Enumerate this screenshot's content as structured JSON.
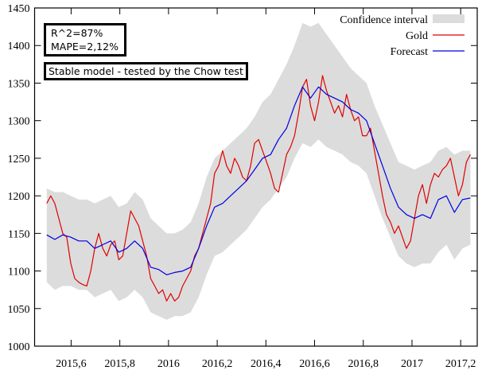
{
  "chart_data": {
    "type": "line",
    "title": "",
    "xlabel": "",
    "ylabel": "",
    "xlim": [
      2015.45,
      2017.268
    ],
    "ylim": [
      1000,
      1450
    ],
    "xticks": [
      2015.6,
      2015.8,
      2016.0,
      2016.2,
      2016.4,
      2016.6,
      2016.8,
      2017.0,
      2017.2
    ],
    "xtick_labels": [
      "2015,6",
      "2015,8",
      "2016",
      "2016,2",
      "2016,4",
      "2016,6",
      "2016,8",
      "2017",
      "2017,2"
    ],
    "yticks": [
      1000,
      1050,
      1100,
      1150,
      1200,
      1250,
      1300,
      1350,
      1400,
      1450
    ],
    "ytick_labels": [
      "1000",
      "1050",
      "1100",
      "1150",
      "1200",
      "1250",
      "1300",
      "1350",
      "1400",
      "1450"
    ],
    "grid": false,
    "legend_position": "top-right",
    "legend": [
      "Confidence interval",
      "Gold",
      "Forecast"
    ],
    "colors": {
      "ci": "#dcdcdc",
      "gold": "#e00000",
      "forecast": "#0000e0"
    },
    "series": [
      {
        "name": "Gold",
        "x_start": 2015.5,
        "x_end": 2017.24,
        "values": [
          1190,
          1200,
          1190,
          1170,
          1150,
          1145,
          1110,
          1090,
          1085,
          1082,
          1080,
          1100,
          1130,
          1150,
          1130,
          1120,
          1135,
          1140,
          1115,
          1120,
          1150,
          1180,
          1170,
          1160,
          1140,
          1120,
          1090,
          1080,
          1070,
          1075,
          1060,
          1070,
          1060,
          1065,
          1080,
          1090,
          1100,
          1120,
          1130,
          1150,
          1170,
          1190,
          1230,
          1240,
          1260,
          1240,
          1230,
          1250,
          1240,
          1225,
          1220,
          1240,
          1270,
          1275,
          1260,
          1245,
          1230,
          1210,
          1205,
          1230,
          1255,
          1265,
          1280,
          1310,
          1345,
          1355,
          1320,
          1300,
          1325,
          1360,
          1340,
          1325,
          1310,
          1320,
          1305,
          1335,
          1315,
          1300,
          1305,
          1280,
          1280,
          1290,
          1260,
          1230,
          1200,
          1175,
          1165,
          1150,
          1160,
          1145,
          1130,
          1140,
          1170,
          1200,
          1215,
          1190,
          1215,
          1230,
          1225,
          1235,
          1240,
          1250,
          1225,
          1200,
          1215,
          1245,
          1255
        ]
      },
      {
        "name": "Forecast",
        "x_start": 2015.5,
        "x_end": 2017.24,
        "values": [
          1148,
          1142,
          1148,
          1145,
          1140,
          1140,
          1130,
          1135,
          1140,
          1125,
          1130,
          1140,
          1130,
          1105,
          1102,
          1095,
          1098,
          1100,
          1105,
          1130,
          1160,
          1185,
          1190,
          1200,
          1210,
          1220,
          1235,
          1250,
          1255,
          1275,
          1290,
          1320,
          1345,
          1330,
          1345,
          1335,
          1330,
          1325,
          1315,
          1310,
          1300,
          1270,
          1240,
          1210,
          1185,
          1175,
          1170,
          1175,
          1170,
          1195,
          1200,
          1178,
          1195,
          1197
        ]
      },
      {
        "name": "Confidence interval",
        "x_start": 2015.5,
        "x_end": 2017.24,
        "upper": [
          1210,
          1205,
          1205,
          1200,
          1195,
          1195,
          1190,
          1195,
          1200,
          1185,
          1190,
          1205,
          1195,
          1170,
          1160,
          1150,
          1150,
          1155,
          1165,
          1190,
          1225,
          1250,
          1260,
          1270,
          1280,
          1290,
          1305,
          1325,
          1335,
          1355,
          1375,
          1400,
          1430,
          1425,
          1430,
          1415,
          1400,
          1385,
          1370,
          1360,
          1350,
          1320,
          1295,
          1270,
          1245,
          1240,
          1235,
          1240,
          1245,
          1260,
          1265,
          1255,
          1260,
          1260
        ],
        "lower": [
          1085,
          1075,
          1080,
          1080,
          1075,
          1075,
          1065,
          1070,
          1075,
          1060,
          1065,
          1075,
          1065,
          1045,
          1040,
          1035,
          1040,
          1040,
          1045,
          1065,
          1095,
          1120,
          1125,
          1135,
          1145,
          1155,
          1170,
          1185,
          1195,
          1210,
          1225,
          1250,
          1270,
          1265,
          1275,
          1265,
          1260,
          1255,
          1245,
          1240,
          1230,
          1200,
          1170,
          1145,
          1120,
          1110,
          1105,
          1110,
          1110,
          1125,
          1135,
          1115,
          1130,
          1135
        ]
      }
    ],
    "annotations": {
      "r2": "R^2=87%",
      "mape": "MAPE=2,12%",
      "stability": "Stable model - tested by the Chow test"
    }
  }
}
